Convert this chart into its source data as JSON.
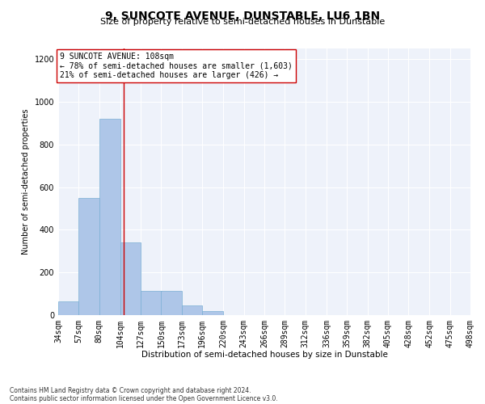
{
  "title": "9, SUNCOTE AVENUE, DUNSTABLE, LU6 1BN",
  "subtitle": "Size of property relative to semi-detached houses in Dunstable",
  "xlabel": "Distribution of semi-detached houses by size in Dunstable",
  "ylabel": "Number of semi-detached properties",
  "bin_edges": [
    34,
    57,
    80,
    104,
    127,
    150,
    173,
    196,
    220,
    243,
    266,
    289,
    312,
    336,
    359,
    382,
    405,
    428,
    452,
    475,
    498
  ],
  "bar_heights": [
    65,
    550,
    920,
    340,
    115,
    115,
    45,
    18,
    0,
    0,
    0,
    0,
    0,
    0,
    0,
    0,
    0,
    0,
    0,
    0
  ],
  "bar_color": "#aec6e8",
  "bar_edgecolor": "#7aafd4",
  "grid_color": "#d0d8e8",
  "bg_color": "#eef2fa",
  "property_size": 108,
  "pct_smaller": 78,
  "count_smaller": 1603,
  "pct_larger": 21,
  "count_larger": 426,
  "vline_color": "#cc0000",
  "annotation_box_edgecolor": "#cc0000",
  "ylim": [
    0,
    1250
  ],
  "yticks": [
    0,
    200,
    400,
    600,
    800,
    1000,
    1200
  ],
  "footnote1": "Contains HM Land Registry data © Crown copyright and database right 2024.",
  "footnote2": "Contains public sector information licensed under the Open Government Licence v3.0.",
  "title_fontsize": 10,
  "subtitle_fontsize": 8,
  "xlabel_fontsize": 7.5,
  "ylabel_fontsize": 7,
  "tick_fontsize": 7,
  "annot_fontsize": 7,
  "footnote_fontsize": 5.5
}
